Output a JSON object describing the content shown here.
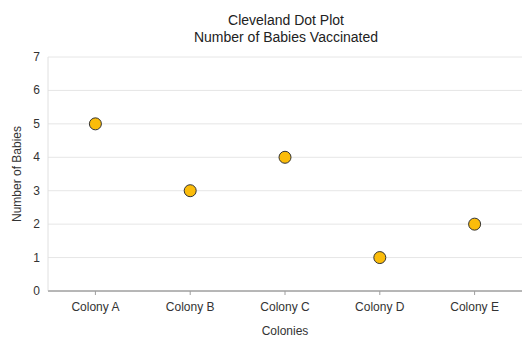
{
  "chart_data": {
    "type": "dot",
    "title": "Cleveland Dot Plot",
    "subtitle": "Number of Babies Vaccinated",
    "x_label": "Colonies",
    "y_label": "Number of Babies",
    "categories": [
      "Colony A",
      "Colony B",
      "Colony C",
      "Colony D",
      "Colony E"
    ],
    "values": [
      5,
      3,
      4,
      1,
      2
    ],
    "color": "#fbbc0a",
    "marker": "circle",
    "ylim": [
      0,
      7
    ],
    "yticks": [
      0,
      1,
      2,
      3,
      4,
      5,
      6,
      7
    ],
    "grid": true
  }
}
